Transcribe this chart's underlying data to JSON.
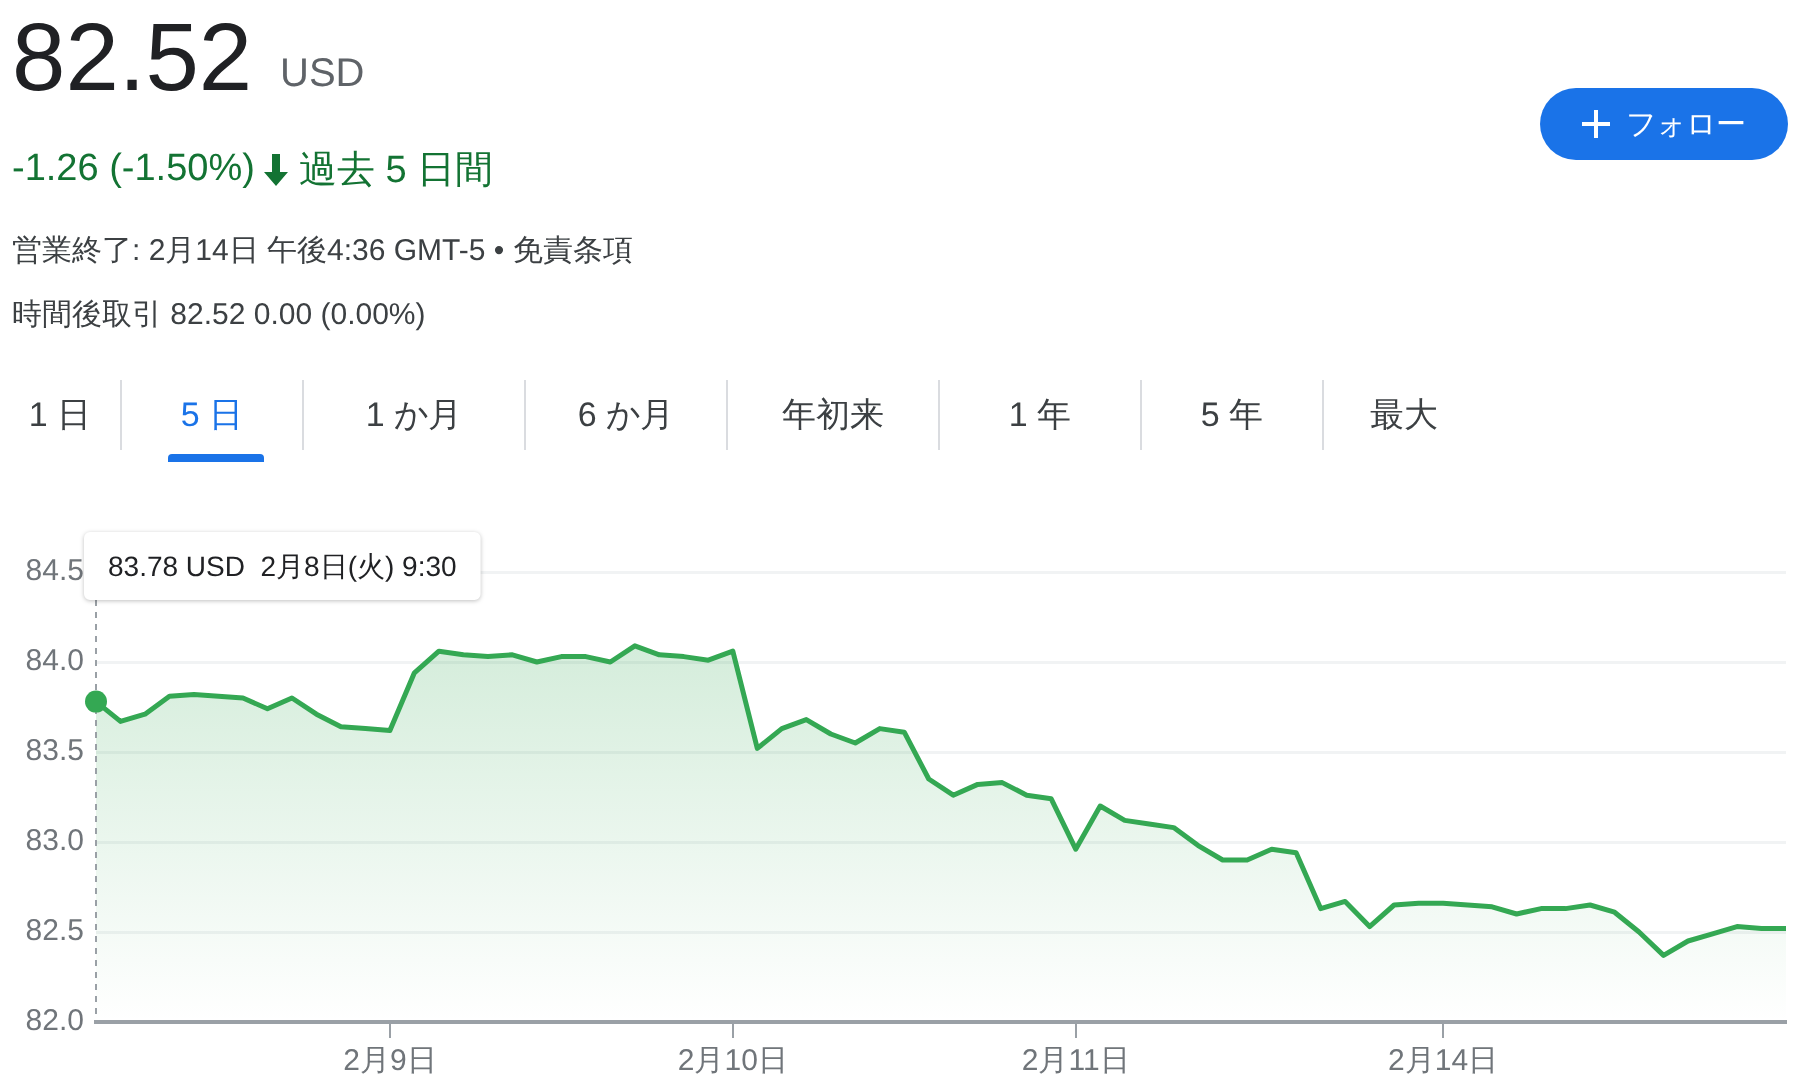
{
  "chart_data": {
    "type": "area",
    "title": "82.52",
    "subtitle": "USD",
    "annotations": [
      "-1.26 (-1.50%)",
      "過去 5 日間",
      "営業終了: 2月14日 午後4:36 GMT-5 • 免責条項",
      "時間後取引 82.52 0.00 (0.00%)",
      "1 日",
      "5 日",
      "1 か月",
      "6 か月",
      "年初来",
      "1 年",
      "5 年",
      "最大",
      "フォロー",
      "83.78 USD  2月8日(火) 9:30"
    ],
    "categories": [
      null,
      null,
      null,
      null,
      null,
      null,
      null,
      null,
      null,
      null,
      null,
      null,
      "2月9日",
      null,
      null,
      null,
      null,
      null,
      null,
      null,
      null,
      null,
      null,
      null,
      null,
      null,
      "2月10日",
      null,
      null,
      null,
      null,
      null,
      null,
      null,
      null,
      null,
      null,
      null,
      null,
      null,
      "2月11日",
      null,
      null,
      null,
      null,
      null,
      null,
      null,
      null,
      null,
      null,
      null,
      null,
      null,
      null,
      "2月14日",
      null,
      null,
      null,
      null,
      null,
      null,
      null,
      null,
      null,
      null,
      null,
      null,
      null,
      null
    ],
    "series": [
      {
        "color": "#34a853",
        "values": [
          83.78,
          83.67,
          83.71,
          83.81,
          83.82,
          83.81,
          83.8,
          83.74,
          83.8,
          83.71,
          83.64,
          83.63,
          83.62,
          83.94,
          84.06,
          84.04,
          84.03,
          84.04,
          84.0,
          84.03,
          84.03,
          84.0,
          84.09,
          84.04,
          84.03,
          84.01,
          84.06,
          83.52,
          83.63,
          83.68,
          83.6,
          83.55,
          83.63,
          83.61,
          83.35,
          83.26,
          83.32,
          83.33,
          83.26,
          83.24,
          82.96,
          83.2,
          83.12,
          83.1,
          83.08,
          82.98,
          82.9,
          82.9,
          82.96,
          82.94,
          82.63,
          82.67,
          82.53,
          82.65,
          82.66,
          82.66,
          82.65,
          82.64,
          82.6,
          82.63,
          82.63,
          82.65,
          82.61,
          82.5,
          82.37,
          82.45,
          82.49,
          82.53,
          82.52,
          82.52
        ]
      }
    ],
    "ylim": [
      82,
      84.5
    ],
    "yticks": [
      {
        "value": 82,
        "label": "82.0"
      },
      82.5,
      {
        "value": 83,
        "label": "83.0"
      },
      83.5,
      {
        "value": 84,
        "label": "84.0"
      },
      84.5
    ],
    "grid": "y",
    "legend": false,
    "marker": "none",
    "line_style": "solid"
  }
}
